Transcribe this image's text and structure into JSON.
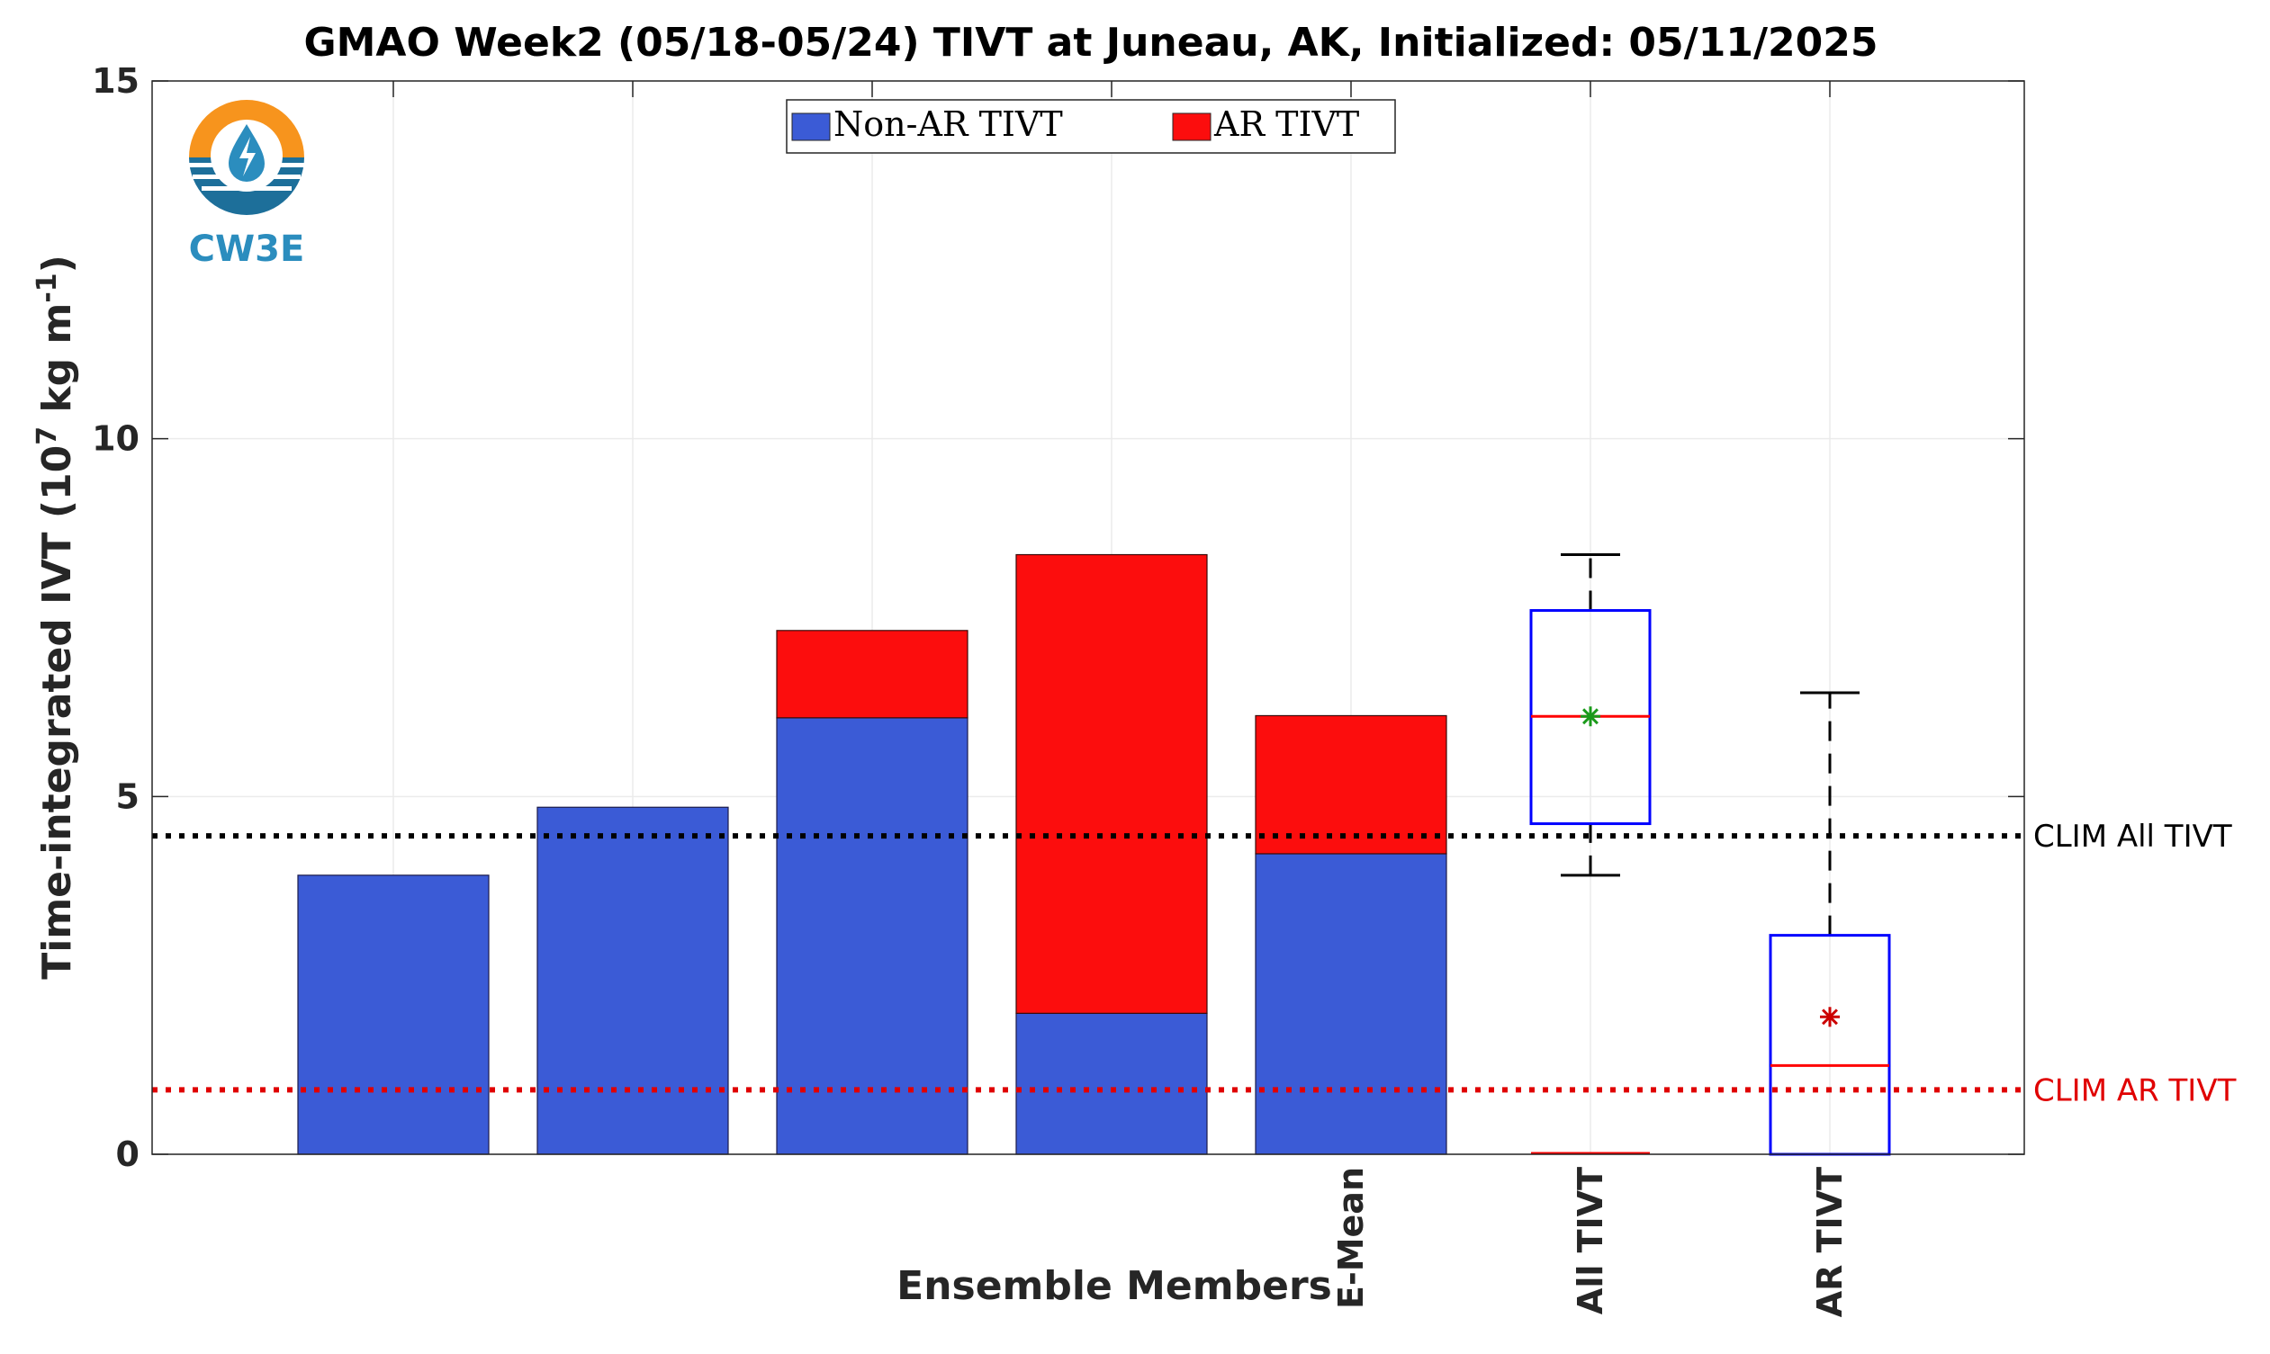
{
  "chart_data": {
    "type": "bar",
    "title": "GMAO Week2 (05/18-05/24) TIVT at Juneau, AK, Initialized: 05/11/2025",
    "xlabel": "Ensemble Members",
    "ylabel": "Time-integrated IVT (10^7 kg m^-1)",
    "ylabel_parts": {
      "base": "Time-integrated IVT (10",
      "exp1": "7",
      "mid": " kg m",
      "exp2": "-1",
      "end": ")"
    },
    "ylim": [
      0,
      15
    ],
    "yticks": [
      "0",
      "5",
      "10",
      "15"
    ],
    "grid": true,
    "legend_placement": "top-center",
    "stacked": true,
    "categories": [
      "",
      "",
      "",
      "",
      "E-Mean"
    ],
    "series": [
      {
        "name": "Non-AR TIVT",
        "color": "#3b5bd6",
        "values": [
          3.9,
          4.85,
          6.1,
          1.97,
          4.2
        ]
      },
      {
        "name": "AR TIVT",
        "color": "#fc0d0d",
        "values": [
          0.0,
          0.0,
          1.22,
          6.41,
          1.93
        ]
      }
    ],
    "boxplots": [
      {
        "label": "All TIVT",
        "whisker_low": 3.9,
        "q1": 4.62,
        "median": 6.12,
        "q3": 7.6,
        "whisker_high": 8.38,
        "mean": 6.12,
        "mean_color": "#1a9a1a",
        "box_color": "#0000ff",
        "median_color": "#ff0000"
      },
      {
        "label": "AR TIVT",
        "whisker_low": 0.0,
        "q1": 0.0,
        "median": 1.24,
        "q3": 3.06,
        "whisker_high": 6.45,
        "mean": 1.92,
        "mean_color": "#cc0000",
        "box_color": "#0000ff",
        "median_color": "#ff0000"
      }
    ],
    "reference_lines": [
      {
        "label": "CLIM All TIVT",
        "value": 4.45,
        "color": "#000000"
      },
      {
        "label": "CLIM AR TIVT",
        "value": 0.9,
        "color": "#e00000"
      }
    ]
  },
  "logo": {
    "text": "CW3E"
  }
}
